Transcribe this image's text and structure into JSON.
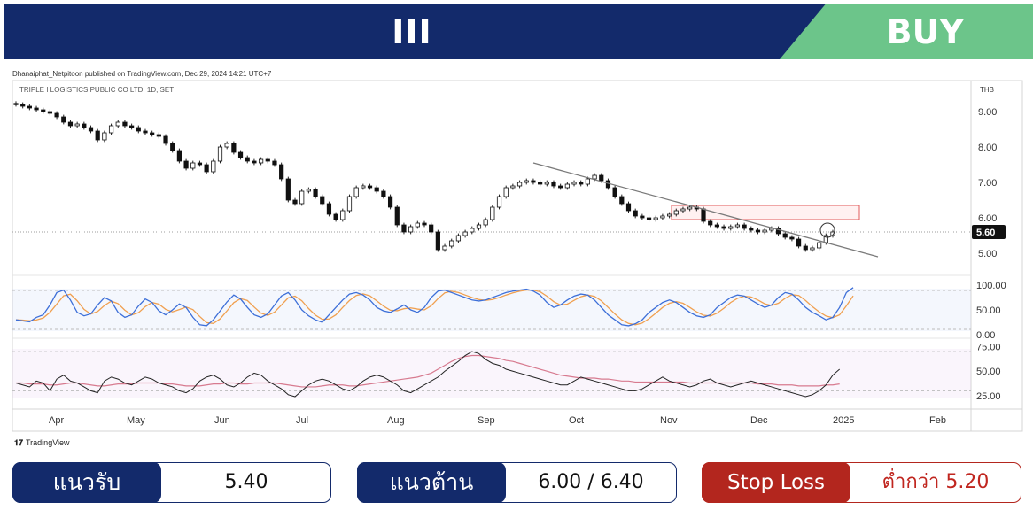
{
  "header": {
    "ticker": "III",
    "signal": "BUY",
    "colors": {
      "navy": "#132a6b",
      "green": "#6cc58a"
    }
  },
  "publisher": "Dhanaiphat_Netpitoon published on TradingView.com, Dec 29, 2024 14:21 UTC+7",
  "branding": {
    "logo": "tradingview-logo",
    "name": "TradingView"
  },
  "chart_data": {
    "type": "candlestick",
    "title": "TRIPLE I LOGISTICS PUBLIC CO LTD, 1D, SET",
    "currency": "THB",
    "last_price": "5.60",
    "price_axis": {
      "ticks": [
        "9.00",
        "8.00",
        "7.00",
        "6.00",
        "5.00"
      ],
      "ylim": [
        4.5,
        9.4
      ]
    },
    "time_axis": {
      "ticks": [
        "Apr",
        "May",
        "Jun",
        "Jul",
        "Aug",
        "Sep",
        "Oct",
        "Nov",
        "Dec",
        "2025",
        "Feb"
      ]
    },
    "close": [
      9.2,
      9.15,
      9.1,
      9.05,
      9.0,
      8.95,
      8.85,
      8.7,
      8.6,
      8.65,
      8.55,
      8.45,
      8.2,
      8.4,
      8.6,
      8.7,
      8.6,
      8.55,
      8.45,
      8.4,
      8.35,
      8.3,
      8.1,
      7.9,
      7.6,
      7.4,
      7.55,
      7.5,
      7.3,
      7.6,
      8.0,
      8.1,
      7.85,
      7.7,
      7.6,
      7.55,
      7.65,
      7.6,
      7.5,
      7.1,
      6.5,
      6.4,
      6.75,
      6.8,
      6.6,
      6.4,
      6.1,
      5.95,
      6.2,
      6.6,
      6.85,
      6.9,
      6.85,
      6.75,
      6.6,
      6.3,
      5.8,
      5.6,
      5.75,
      5.85,
      5.8,
      5.6,
      5.1,
      5.2,
      5.35,
      5.5,
      5.6,
      5.7,
      5.8,
      5.95,
      6.3,
      6.6,
      6.85,
      6.9,
      7.0,
      7.05,
      7.0,
      6.95,
      7.0,
      6.9,
      6.85,
      6.95,
      7.0,
      6.95,
      7.1,
      7.2,
      7.05,
      6.85,
      6.6,
      6.4,
      6.2,
      6.05,
      6.0,
      5.95,
      6.0,
      6.05,
      6.1,
      6.2,
      6.25,
      6.3,
      6.25,
      5.9,
      5.8,
      5.75,
      5.7,
      5.75,
      5.8,
      5.7,
      5.65,
      5.6,
      5.65,
      5.7,
      5.55,
      5.45,
      5.4,
      5.2,
      5.1,
      5.15,
      5.3,
      5.5,
      5.6
    ],
    "trendline": {
      "from": [
        "Sep",
        7.55
      ],
      "to": [
        "2025",
        4.9
      ]
    },
    "resistance_zone": {
      "low": 5.95,
      "high": 6.35
    },
    "indicators": [
      {
        "name": "stochastic",
        "ticks": [
          "100.00",
          "50.00",
          "0.00"
        ],
        "ylim": [
          0,
          100
        ],
        "k": [
          30,
          28,
          26,
          35,
          40,
          60,
          85,
          90,
          70,
          45,
          38,
          42,
          60,
          75,
          68,
          45,
          35,
          40,
          58,
          72,
          65,
          48,
          40,
          50,
          62,
          55,
          35,
          20,
          18,
          30,
          48,
          66,
          80,
          72,
          55,
          40,
          35,
          42,
          60,
          78,
          85,
          70,
          50,
          38,
          30,
          25,
          40,
          55,
          70,
          82,
          85,
          80,
          70,
          55,
          48,
          45,
          52,
          60,
          50,
          45,
          55,
          75,
          88,
          90,
          85,
          80,
          75,
          70,
          68,
          70,
          75,
          80,
          85,
          88,
          90,
          92,
          88,
          80,
          65,
          55,
          60,
          70,
          78,
          82,
          80,
          70,
          55,
          40,
          30,
          20,
          18,
          22,
          30,
          45,
          55,
          65,
          70,
          65,
          55,
          45,
          38,
          35,
          40,
          55,
          65,
          75,
          80,
          78,
          70,
          62,
          55,
          60,
          75,
          85,
          82,
          70,
          55,
          45,
          38,
          30,
          35,
          55,
          85,
          95
        ]
      },
      {
        "name": "rsi",
        "ticks": [
          "75.00",
          "50.00",
          "25.00"
        ],
        "ylim": [
          15,
          80
        ],
        "line": [
          38,
          36,
          34,
          40,
          38,
          30,
          42,
          46,
          40,
          38,
          34,
          30,
          28,
          40,
          44,
          42,
          38,
          36,
          40,
          44,
          42,
          38,
          36,
          34,
          30,
          28,
          32,
          40,
          44,
          46,
          42,
          36,
          34,
          38,
          44,
          48,
          46,
          40,
          36,
          32,
          26,
          24,
          30,
          36,
          40,
          42,
          40,
          36,
          32,
          30,
          34,
          40,
          44,
          46,
          44,
          40,
          36,
          30,
          28,
          32,
          36,
          40,
          44,
          50,
          55,
          60,
          66,
          70,
          68,
          62,
          58,
          56,
          52,
          50,
          48,
          46,
          44,
          42,
          40,
          38,
          36,
          36,
          40,
          44,
          42,
          40,
          38,
          36,
          34,
          32,
          30,
          30,
          32,
          36,
          40,
          44,
          40,
          38,
          36,
          34,
          36,
          40,
          42,
          38,
          36,
          34,
          36,
          38,
          40,
          38,
          36,
          34,
          32,
          30,
          28,
          26,
          24,
          26,
          30,
          36,
          46,
          52
        ],
        "ma": [
          38,
          38,
          37,
          37,
          37,
          36,
          36,
          37,
          38,
          38,
          37,
          36,
          35,
          35,
          36,
          37,
          37,
          37,
          38,
          38,
          38,
          38,
          37,
          37,
          36,
          35,
          35,
          35,
          36,
          37,
          37,
          38,
          38,
          37,
          37,
          38,
          38,
          38,
          38,
          37,
          36,
          35,
          34,
          34,
          34,
          35,
          36,
          36,
          36,
          35,
          35,
          36,
          37,
          38,
          39,
          40,
          41,
          42,
          43,
          44,
          46,
          48,
          52,
          56,
          60,
          63,
          65,
          66,
          66,
          65,
          64,
          63,
          61,
          60,
          58,
          56,
          54,
          52,
          50,
          48,
          46,
          45,
          44,
          43,
          43,
          43,
          42,
          42,
          41,
          40,
          40,
          39,
          39,
          39,
          39,
          39,
          39,
          39,
          39,
          38,
          38,
          38,
          38,
          38,
          38,
          38,
          38,
          38,
          38,
          37,
          37,
          37,
          36,
          36,
          36,
          35,
          35,
          35,
          35,
          36,
          36,
          37
        ]
      }
    ]
  },
  "levels": {
    "support": {
      "label": "แนวรับ",
      "value": "5.40"
    },
    "resistance": {
      "label": "แนวต้าน",
      "value": "6.00 / 6.40"
    },
    "stoploss": {
      "label": "Stop Loss",
      "value": "ต่ำกว่า 5.20"
    }
  }
}
